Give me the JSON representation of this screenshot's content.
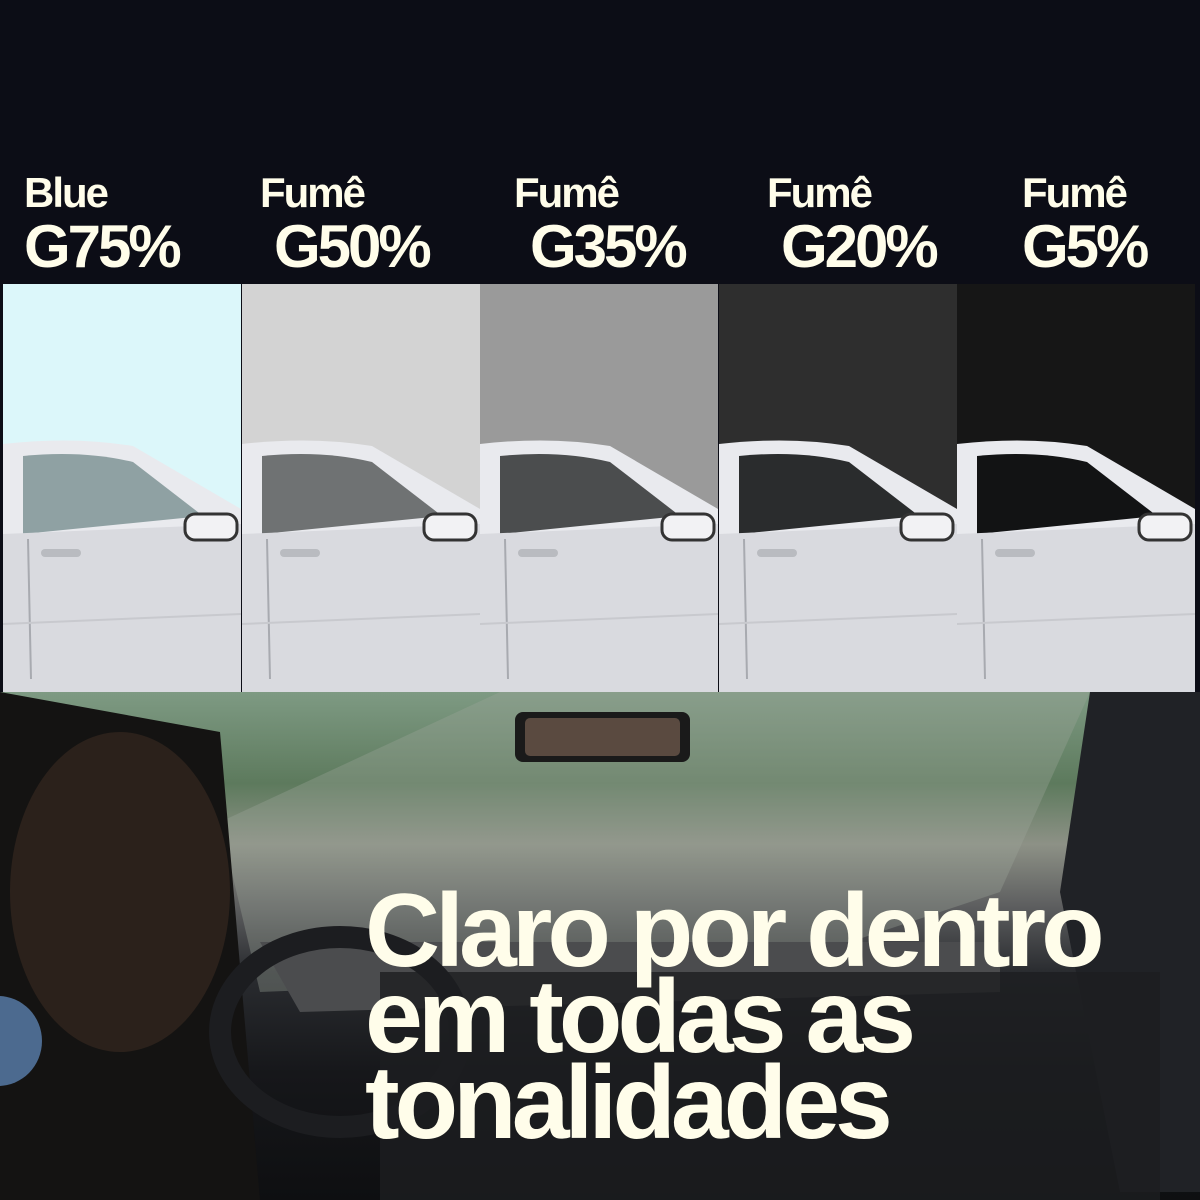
{
  "tints": [
    {
      "line1": "Blue",
      "line2": "G75%",
      "color": "#dcf7fa"
    },
    {
      "line1": "Fumê",
      "line2": "G50%",
      "color": "#d3d3d3"
    },
    {
      "line1": "Fumê",
      "line2": "G35%",
      "color": "#9a9a9a"
    },
    {
      "line1": "Fumê",
      "line2": "G20%",
      "color": "#2e2e2e"
    },
    {
      "line1": "Fumê",
      "line2": "G5%",
      "color": "#161616"
    }
  ],
  "headline": {
    "line1": "Claro por dentro",
    "line2": "em todas as",
    "line3": "tonalidades"
  },
  "colors": {
    "background": "#0c0d16",
    "text": "#fffdea",
    "accent_circle": "#4c6a8f"
  }
}
